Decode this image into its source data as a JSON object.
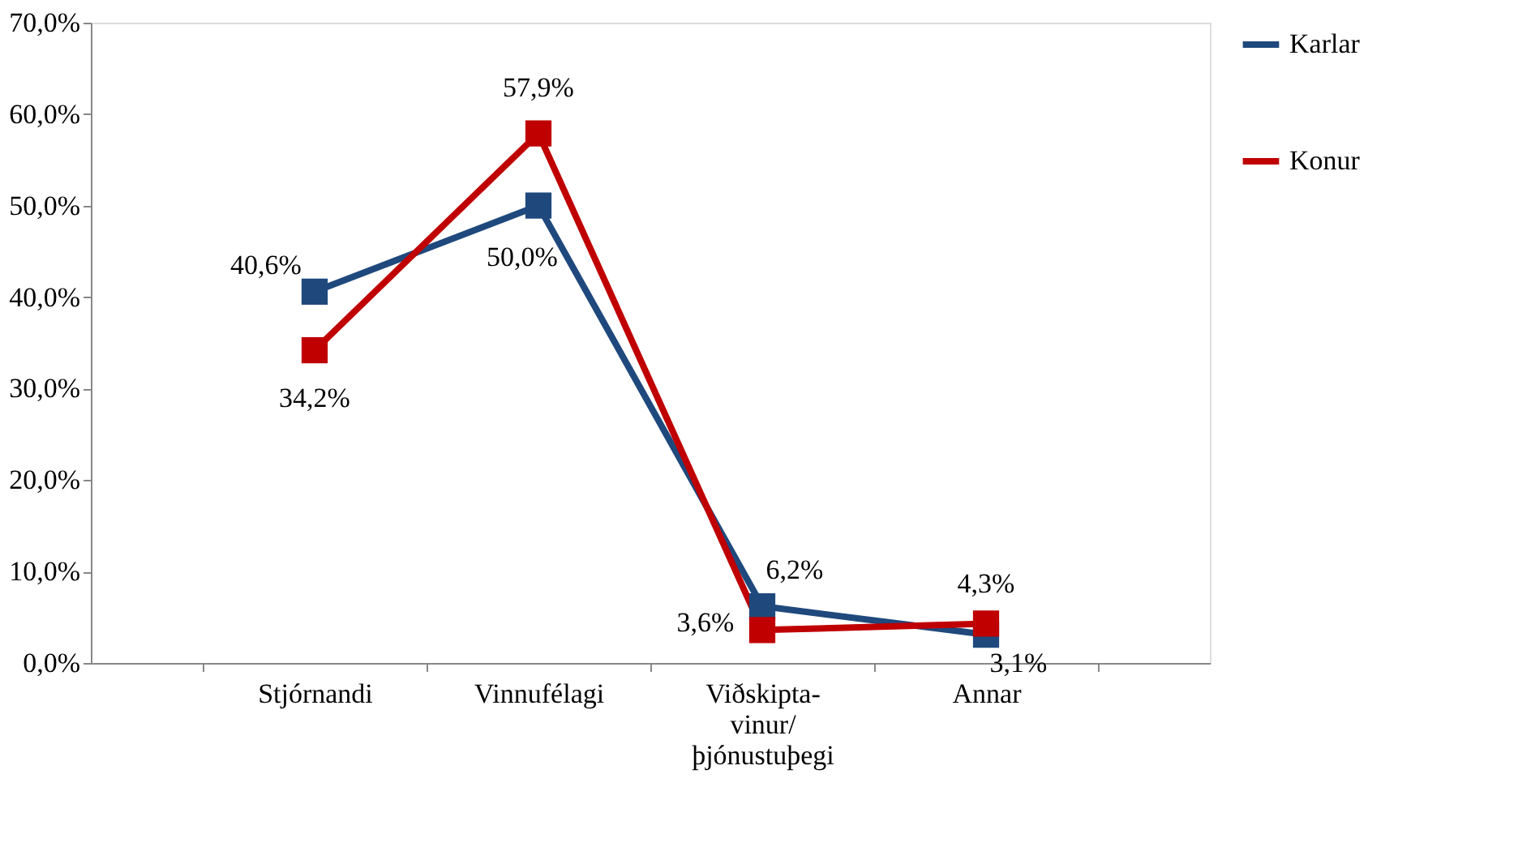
{
  "chart_data": {
    "type": "line",
    "categories": [
      "Stjórnandi",
      "Vinnufélagi",
      "Viðskipta-\nvinur/\nþjónustuþegi",
      "Annar"
    ],
    "series": [
      {
        "name": "Karlar",
        "color": "#1f497d",
        "values": [
          40.6,
          50.0,
          6.2,
          3.1
        ],
        "value_labels": [
          "40,6%",
          "50,0%",
          "6,2%",
          "3,1%"
        ]
      },
      {
        "name": "Konur",
        "color": "#c00000",
        "values": [
          34.2,
          57.9,
          3.6,
          4.3
        ],
        "value_labels": [
          "34,2%",
          "57,9%",
          "3,6%",
          "4,3%"
        ]
      }
    ],
    "ylim": [
      0,
      70
    ],
    "yticks": [
      {
        "value": 0,
        "label": "0,0%"
      },
      {
        "value": 10,
        "label": "10,0%"
      },
      {
        "value": 20,
        "label": "20,0%"
      },
      {
        "value": 30,
        "label": "30,0%"
      },
      {
        "value": 40,
        "label": "40,0%"
      },
      {
        "value": 50,
        "label": "50,0%"
      },
      {
        "value": 60,
        "label": "60,0%"
      },
      {
        "value": 70,
        "label": "70,0%"
      }
    ],
    "grid": false,
    "legend": "right",
    "marker": "square",
    "line_style": "solid"
  }
}
